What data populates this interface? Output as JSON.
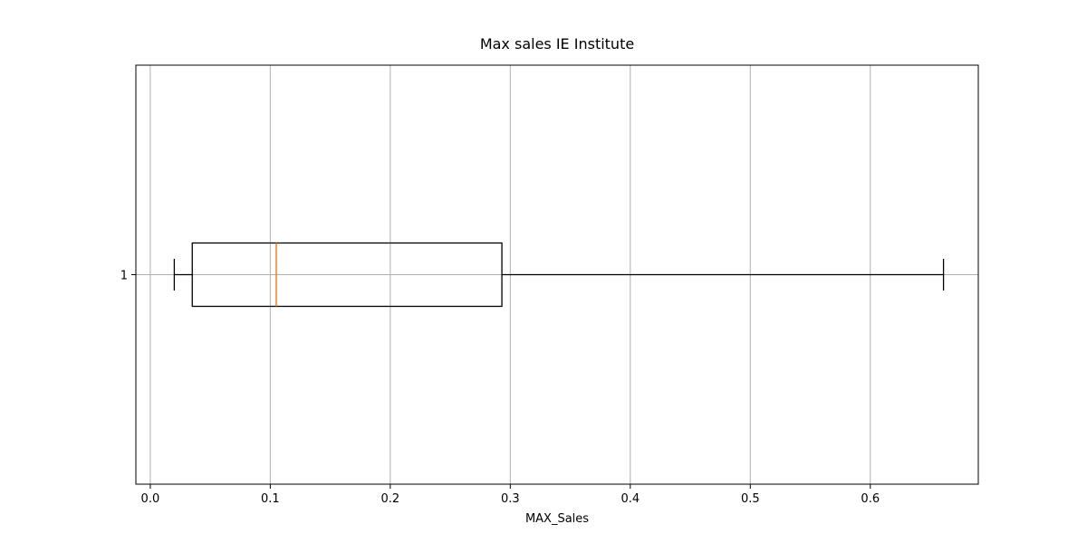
{
  "chart_data": {
    "type": "boxplot",
    "title": "Max sales IE Institute",
    "xlabel": "MAX_Sales",
    "ylabel": "",
    "orientation": "horizontal",
    "xlim": [
      -0.012,
      0.69
    ],
    "xticks": [
      0.0,
      0.1,
      0.2,
      0.3,
      0.4,
      0.5,
      0.6
    ],
    "xtick_labels": [
      "0.0",
      "0.1",
      "0.2",
      "0.3",
      "0.4",
      "0.5",
      "0.6"
    ],
    "yticks": [
      1
    ],
    "ytick_labels": [
      "1"
    ],
    "grid": true,
    "boxes": [
      {
        "position": 1,
        "label": "1",
        "whisker_low": 0.02,
        "q1": 0.035,
        "median": 0.105,
        "q3": 0.293,
        "whisker_high": 0.661
      }
    ],
    "colors": {
      "box": "#000000",
      "median": "#ff7f0e",
      "grid": "#b0b0b0"
    }
  }
}
